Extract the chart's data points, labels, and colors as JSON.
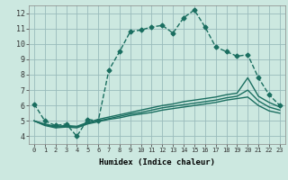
{
  "xlabel": "Humidex (Indice chaleur)",
  "bg_color": "#cce8e0",
  "grid_color": "#99bbbb",
  "line_color": "#1a6e60",
  "xlim": [
    -0.5,
    23.5
  ],
  "ylim": [
    3.5,
    12.5
  ],
  "xticks": [
    0,
    1,
    2,
    3,
    4,
    5,
    6,
    7,
    8,
    9,
    10,
    11,
    12,
    13,
    14,
    15,
    16,
    17,
    18,
    19,
    20,
    21,
    22,
    23
  ],
  "yticks": [
    4,
    5,
    6,
    7,
    8,
    9,
    10,
    11,
    12
  ],
  "series": [
    {
      "x": [
        0,
        1,
        2,
        3,
        4,
        5,
        6,
        7,
        8,
        9,
        10,
        11,
        12,
        13,
        14,
        15,
        16,
        17,
        18,
        19,
        20,
        21,
        22,
        23
      ],
      "y": [
        6.1,
        5.0,
        4.7,
        4.8,
        4.0,
        5.1,
        5.0,
        8.3,
        9.5,
        10.8,
        10.9,
        11.1,
        11.2,
        10.7,
        11.7,
        12.2,
        11.1,
        9.8,
        9.5,
        9.2,
        9.3,
        7.8,
        6.7,
        6.0
      ],
      "style": "-",
      "marker": "D",
      "markersize": 2.5,
      "linewidth": 1.0,
      "dashed": true
    },
    {
      "x": [
        0,
        1,
        2,
        3,
        4,
        5,
        6,
        7,
        8,
        9,
        10,
        11,
        12,
        13,
        14,
        15,
        16,
        17,
        18,
        19,
        20,
        21,
        22,
        23
      ],
      "y": [
        5.0,
        4.8,
        4.65,
        4.7,
        4.65,
        4.9,
        5.1,
        5.25,
        5.4,
        5.55,
        5.7,
        5.85,
        6.0,
        6.1,
        6.25,
        6.35,
        6.45,
        6.55,
        6.7,
        6.8,
        7.8,
        6.6,
        6.2,
        5.9
      ],
      "style": "-",
      "marker": null,
      "markersize": 0,
      "linewidth": 1.0,
      "dashed": false
    },
    {
      "x": [
        0,
        1,
        2,
        3,
        4,
        5,
        6,
        7,
        8,
        9,
        10,
        11,
        12,
        13,
        14,
        15,
        16,
        17,
        18,
        19,
        20,
        21,
        22,
        23
      ],
      "y": [
        5.0,
        4.75,
        4.6,
        4.65,
        4.6,
        4.85,
        5.0,
        5.15,
        5.3,
        5.45,
        5.55,
        5.7,
        5.85,
        5.95,
        6.05,
        6.15,
        6.25,
        6.35,
        6.5,
        6.6,
        7.0,
        6.3,
        5.9,
        5.7
      ],
      "style": "-",
      "marker": null,
      "markersize": 0,
      "linewidth": 1.0,
      "dashed": false
    },
    {
      "x": [
        0,
        1,
        2,
        3,
        4,
        5,
        6,
        7,
        8,
        9,
        10,
        11,
        12,
        13,
        14,
        15,
        16,
        17,
        18,
        19,
        20,
        21,
        22,
        23
      ],
      "y": [
        5.0,
        4.7,
        4.55,
        4.6,
        4.55,
        4.8,
        4.95,
        5.1,
        5.2,
        5.35,
        5.45,
        5.55,
        5.7,
        5.8,
        5.9,
        6.0,
        6.1,
        6.2,
        6.35,
        6.45,
        6.55,
        6.0,
        5.65,
        5.5
      ],
      "style": "-",
      "marker": null,
      "markersize": 0,
      "linewidth": 1.0,
      "dashed": false
    }
  ]
}
